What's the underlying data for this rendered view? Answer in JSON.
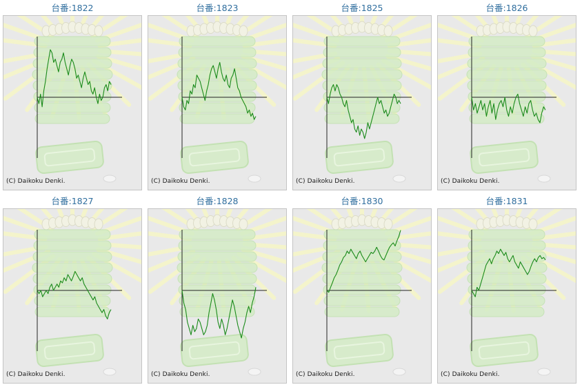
{
  "copyright": "(C) Daikoku Denki.",
  "colors": {
    "line": "#1a8a1a",
    "axis": "#222222",
    "title": "#2f6e9e",
    "background": "#e9e9e9"
  },
  "chart_data": [
    {
      "type": "line",
      "title": "台番:1822",
      "ylim": [
        -1,
        1
      ],
      "y": [
        0.0,
        -0.1,
        0.05,
        -0.15,
        0.1,
        0.25,
        0.45,
        0.6,
        0.75,
        0.7,
        0.55,
        0.6,
        0.5,
        0.4,
        0.55,
        0.6,
        0.7,
        0.55,
        0.45,
        0.35,
        0.5,
        0.6,
        0.55,
        0.45,
        0.3,
        0.35,
        0.25,
        0.15,
        0.3,
        0.4,
        0.3,
        0.2,
        0.25,
        0.1,
        0.05,
        0.15,
        0.0,
        -0.1,
        0.05,
        -0.05,
        0.0,
        0.15,
        0.2,
        0.1,
        0.25,
        0.2
      ]
    },
    {
      "type": "line",
      "title": "台番:1823",
      "ylim": [
        -1,
        1
      ],
      "y": [
        0.0,
        -0.15,
        -0.2,
        -0.05,
        -0.1,
        0.1,
        0.05,
        0.2,
        0.15,
        0.35,
        0.3,
        0.25,
        0.15,
        0.05,
        -0.05,
        0.1,
        0.2,
        0.35,
        0.45,
        0.5,
        0.4,
        0.3,
        0.45,
        0.55,
        0.4,
        0.3,
        0.25,
        0.35,
        0.2,
        0.15,
        0.3,
        0.35,
        0.45,
        0.3,
        0.15,
        0.1,
        0.0,
        -0.05,
        -0.1,
        -0.15,
        -0.25,
        -0.2,
        -0.3,
        -0.25,
        -0.35,
        -0.3
      ]
    },
    {
      "type": "line",
      "title": "台番:1825",
      "ylim": [
        -1,
        1
      ],
      "y": [
        0.0,
        -0.1,
        0.05,
        0.15,
        0.2,
        0.1,
        0.2,
        0.15,
        0.05,
        0.0,
        -0.1,
        -0.15,
        -0.05,
        -0.2,
        -0.3,
        -0.4,
        -0.35,
        -0.5,
        -0.55,
        -0.45,
        -0.6,
        -0.5,
        -0.55,
        -0.65,
        -0.55,
        -0.4,
        -0.5,
        -0.4,
        -0.3,
        -0.2,
        -0.1,
        0.0,
        -0.1,
        -0.05,
        -0.15,
        -0.25,
        -0.2,
        -0.3,
        -0.25,
        -0.15,
        -0.05,
        0.05,
        0.0,
        -0.1,
        -0.05,
        -0.1
      ]
    },
    {
      "type": "line",
      "title": "台番:1826",
      "ylim": [
        -1,
        1
      ],
      "y": [
        0.0,
        -0.2,
        -0.1,
        -0.25,
        -0.15,
        -0.05,
        -0.2,
        -0.1,
        -0.3,
        -0.15,
        -0.05,
        -0.25,
        -0.1,
        -0.35,
        -0.2,
        -0.1,
        -0.05,
        -0.15,
        0.0,
        -0.2,
        -0.3,
        -0.15,
        -0.25,
        -0.1,
        0.0,
        0.05,
        -0.1,
        -0.2,
        -0.3,
        -0.15,
        -0.25,
        -0.1,
        -0.05,
        -0.2,
        -0.3,
        -0.25,
        -0.35,
        -0.4,
        -0.25,
        -0.15,
        -0.2
      ]
    },
    {
      "type": "line",
      "title": "台番:1827",
      "ylim": [
        -1,
        1
      ],
      "y": [
        0.0,
        -0.05,
        0.0,
        -0.1,
        -0.05,
        0.0,
        -0.05,
        0.05,
        0.1,
        0.0,
        0.05,
        0.1,
        0.05,
        0.15,
        0.12,
        0.2,
        0.15,
        0.25,
        0.2,
        0.15,
        0.22,
        0.3,
        0.25,
        0.2,
        0.15,
        0.2,
        0.1,
        0.05,
        0.0,
        -0.05,
        -0.1,
        -0.15,
        -0.1,
        -0.2,
        -0.25,
        -0.3,
        -0.35,
        -0.3,
        -0.4,
        -0.45,
        -0.35,
        -0.3
      ]
    },
    {
      "type": "line",
      "title": "台番:1828",
      "ylim": [
        -1,
        1
      ],
      "y": [
        0.0,
        -0.2,
        -0.3,
        -0.5,
        -0.6,
        -0.7,
        -0.55,
        -0.65,
        -0.6,
        -0.45,
        -0.5,
        -0.6,
        -0.7,
        -0.65,
        -0.55,
        -0.35,
        -0.2,
        -0.05,
        -0.15,
        -0.3,
        -0.5,
        -0.6,
        -0.45,
        -0.55,
        -0.7,
        -0.6,
        -0.45,
        -0.3,
        -0.15,
        -0.25,
        -0.4,
        -0.55,
        -0.65,
        -0.75,
        -0.6,
        -0.5,
        -0.35,
        -0.25,
        -0.35,
        -0.2,
        -0.1,
        0.05
      ]
    },
    {
      "type": "line",
      "title": "台番:1830",
      "ylim": [
        -1,
        1
      ],
      "y": [
        0.0,
        -0.03,
        0.05,
        0.12,
        0.2,
        0.25,
        0.32,
        0.4,
        0.45,
        0.52,
        0.55,
        0.62,
        0.58,
        0.65,
        0.6,
        0.55,
        0.5,
        0.58,
        0.62,
        0.55,
        0.5,
        0.45,
        0.5,
        0.55,
        0.6,
        0.58,
        0.62,
        0.68,
        0.62,
        0.55,
        0.5,
        0.48,
        0.55,
        0.62,
        0.68,
        0.72,
        0.75,
        0.7,
        0.78,
        0.85,
        0.95
      ]
    },
    {
      "type": "line",
      "title": "台番:1831",
      "ylim": [
        -1,
        1
      ],
      "y": [
        0.0,
        -0.05,
        -0.1,
        0.05,
        0.0,
        0.1,
        0.2,
        0.3,
        0.4,
        0.45,
        0.5,
        0.42,
        0.5,
        0.55,
        0.62,
        0.58,
        0.65,
        0.6,
        0.55,
        0.6,
        0.5,
        0.45,
        0.5,
        0.55,
        0.45,
        0.4,
        0.35,
        0.45,
        0.4,
        0.35,
        0.3,
        0.25,
        0.3,
        0.38,
        0.45,
        0.5,
        0.45,
        0.52,
        0.55,
        0.5,
        0.52,
        0.48
      ]
    }
  ]
}
